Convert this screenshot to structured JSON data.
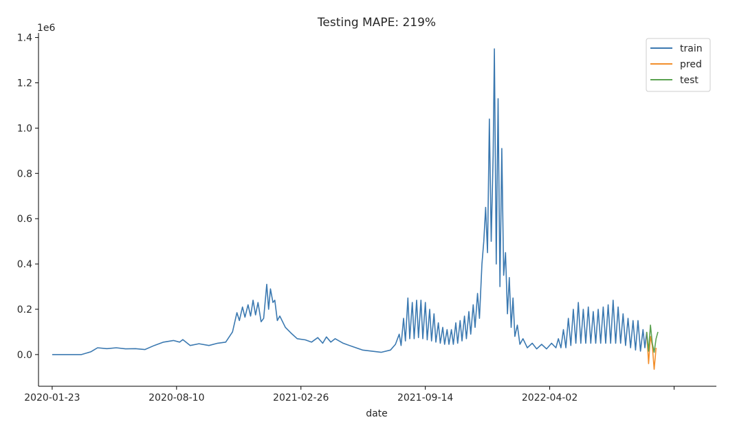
{
  "chart_data": {
    "type": "line",
    "title": "Testing MAPE: 219%",
    "xlabel": "date",
    "ylabel": "",
    "y_offset_label": "1e6",
    "x_ticks": [
      "2020-01-23",
      "2020-08-10",
      "2021-02-26",
      "2021-09-14",
      "2022-04-02",
      ""
    ],
    "y_ticks": [
      "0.0",
      "0.2",
      "0.4",
      "0.6",
      "0.8",
      "1.0",
      "1.2",
      "1.4"
    ],
    "xlim": [
      "2020-01-01",
      "2022-12-26"
    ],
    "ylim": [
      -140000,
      1420000
    ],
    "grid": false,
    "legend_position": "top-right",
    "series": [
      {
        "name": "train",
        "color": "#3a78b0",
        "points": [
          [
            "2020-01-23",
            0
          ],
          [
            "2020-02-15",
            0
          ],
          [
            "2020-03-10",
            0
          ],
          [
            "2020-03-25",
            12000
          ],
          [
            "2020-04-05",
            30000
          ],
          [
            "2020-04-20",
            26000
          ],
          [
            "2020-05-05",
            30000
          ],
          [
            "2020-05-20",
            25000
          ],
          [
            "2020-06-05",
            26000
          ],
          [
            "2020-06-20",
            22000
          ],
          [
            "2020-07-05",
            40000
          ],
          [
            "2020-07-20",
            55000
          ],
          [
            "2020-08-05",
            62000
          ],
          [
            "2020-08-15",
            55000
          ],
          [
            "2020-08-20",
            66000
          ],
          [
            "2020-09-01",
            40000
          ],
          [
            "2020-09-15",
            48000
          ],
          [
            "2020-10-01",
            40000
          ],
          [
            "2020-10-15",
            50000
          ],
          [
            "2020-10-28",
            55000
          ],
          [
            "2020-11-08",
            100000
          ],
          [
            "2020-11-15",
            185000
          ],
          [
            "2020-11-19",
            150000
          ],
          [
            "2020-11-24",
            210000
          ],
          [
            "2020-11-28",
            165000
          ],
          [
            "2020-12-03",
            220000
          ],
          [
            "2020-12-07",
            170000
          ],
          [
            "2020-12-11",
            240000
          ],
          [
            "2020-12-15",
            175000
          ],
          [
            "2020-12-19",
            230000
          ],
          [
            "2020-12-24",
            145000
          ],
          [
            "2020-12-28",
            160000
          ],
          [
            "2021-01-02",
            310000
          ],
          [
            "2021-01-05",
            200000
          ],
          [
            "2021-01-08",
            290000
          ],
          [
            "2021-01-12",
            230000
          ],
          [
            "2021-01-15",
            240000
          ],
          [
            "2021-01-19",
            150000
          ],
          [
            "2021-01-23",
            170000
          ],
          [
            "2021-02-01",
            120000
          ],
          [
            "2021-02-10",
            95000
          ],
          [
            "2021-02-20",
            70000
          ],
          [
            "2021-03-05",
            65000
          ],
          [
            "2021-03-15",
            55000
          ],
          [
            "2021-03-25",
            75000
          ],
          [
            "2021-04-02",
            50000
          ],
          [
            "2021-04-08",
            78000
          ],
          [
            "2021-04-15",
            55000
          ],
          [
            "2021-04-22",
            70000
          ],
          [
            "2021-05-05",
            50000
          ],
          [
            "2021-05-20",
            35000
          ],
          [
            "2021-06-05",
            20000
          ],
          [
            "2021-06-20",
            15000
          ],
          [
            "2021-07-05",
            10000
          ],
          [
            "2021-07-20",
            20000
          ],
          [
            "2021-07-28",
            45000
          ],
          [
            "2021-08-03",
            90000
          ],
          [
            "2021-08-06",
            40000
          ],
          [
            "2021-08-10",
            160000
          ],
          [
            "2021-08-13",
            60000
          ],
          [
            "2021-08-17",
            250000
          ],
          [
            "2021-08-20",
            70000
          ],
          [
            "2021-08-24",
            230000
          ],
          [
            "2021-08-27",
            70000
          ],
          [
            "2021-08-31",
            240000
          ],
          [
            "2021-09-03",
            75000
          ],
          [
            "2021-09-07",
            240000
          ],
          [
            "2021-09-10",
            70000
          ],
          [
            "2021-09-14",
            230000
          ],
          [
            "2021-09-17",
            65000
          ],
          [
            "2021-09-21",
            200000
          ],
          [
            "2021-09-24",
            60000
          ],
          [
            "2021-09-28",
            180000
          ],
          [
            "2021-10-01",
            55000
          ],
          [
            "2021-10-05",
            140000
          ],
          [
            "2021-10-08",
            50000
          ],
          [
            "2021-10-12",
            120000
          ],
          [
            "2021-10-15",
            45000
          ],
          [
            "2021-10-19",
            110000
          ],
          [
            "2021-10-22",
            45000
          ],
          [
            "2021-10-26",
            110000
          ],
          [
            "2021-10-29",
            45000
          ],
          [
            "2021-11-02",
            140000
          ],
          [
            "2021-11-05",
            50000
          ],
          [
            "2021-11-09",
            150000
          ],
          [
            "2021-11-12",
            60000
          ],
          [
            "2021-11-16",
            170000
          ],
          [
            "2021-11-19",
            70000
          ],
          [
            "2021-11-23",
            190000
          ],
          [
            "2021-11-26",
            90000
          ],
          [
            "2021-11-30",
            220000
          ],
          [
            "2021-12-03",
            120000
          ],
          [
            "2021-12-07",
            270000
          ],
          [
            "2021-12-10",
            160000
          ],
          [
            "2021-12-14",
            400000
          ],
          [
            "2021-12-17",
            500000
          ],
          [
            "2021-12-20",
            650000
          ],
          [
            "2021-12-23",
            450000
          ],
          [
            "2021-12-26",
            1040000
          ],
          [
            "2021-12-29",
            500000
          ],
          [
            "2022-01-01",
            880000
          ],
          [
            "2022-01-03",
            1350000
          ],
          [
            "2022-01-06",
            400000
          ],
          [
            "2022-01-09",
            1130000
          ],
          [
            "2022-01-12",
            300000
          ],
          [
            "2022-01-15",
            910000
          ],
          [
            "2022-01-18",
            350000
          ],
          [
            "2022-01-21",
            450000
          ],
          [
            "2022-01-24",
            180000
          ],
          [
            "2022-01-27",
            340000
          ],
          [
            "2022-01-30",
            120000
          ],
          [
            "2022-02-02",
            250000
          ],
          [
            "2022-02-05",
            80000
          ],
          [
            "2022-02-09",
            130000
          ],
          [
            "2022-02-13",
            45000
          ],
          [
            "2022-02-18",
            70000
          ],
          [
            "2022-02-25",
            30000
          ],
          [
            "2022-03-05",
            50000
          ],
          [
            "2022-03-12",
            25000
          ],
          [
            "2022-03-20",
            45000
          ],
          [
            "2022-03-28",
            25000
          ],
          [
            "2022-04-05",
            50000
          ],
          [
            "2022-04-12",
            30000
          ],
          [
            "2022-04-16",
            70000
          ],
          [
            "2022-04-20",
            30000
          ],
          [
            "2022-04-24",
            110000
          ],
          [
            "2022-04-28",
            30000
          ],
          [
            "2022-05-02",
            160000
          ],
          [
            "2022-05-06",
            40000
          ],
          [
            "2022-05-10",
            200000
          ],
          [
            "2022-05-14",
            50000
          ],
          [
            "2022-05-18",
            230000
          ],
          [
            "2022-05-22",
            50000
          ],
          [
            "2022-05-26",
            200000
          ],
          [
            "2022-05-30",
            50000
          ],
          [
            "2022-06-03",
            210000
          ],
          [
            "2022-06-07",
            50000
          ],
          [
            "2022-06-11",
            190000
          ],
          [
            "2022-06-15",
            50000
          ],
          [
            "2022-06-19",
            200000
          ],
          [
            "2022-06-23",
            50000
          ],
          [
            "2022-06-27",
            210000
          ],
          [
            "2022-07-01",
            50000
          ],
          [
            "2022-07-05",
            220000
          ],
          [
            "2022-07-09",
            50000
          ],
          [
            "2022-07-13",
            240000
          ],
          [
            "2022-07-17",
            50000
          ],
          [
            "2022-07-21",
            210000
          ],
          [
            "2022-07-25",
            50000
          ],
          [
            "2022-07-29",
            180000
          ],
          [
            "2022-08-02",
            40000
          ],
          [
            "2022-08-06",
            160000
          ],
          [
            "2022-08-10",
            30000
          ],
          [
            "2022-08-14",
            150000
          ],
          [
            "2022-08-18",
            20000
          ],
          [
            "2022-08-22",
            150000
          ],
          [
            "2022-08-26",
            15000
          ],
          [
            "2022-08-30",
            110000
          ],
          [
            "2022-09-02",
            30000
          ],
          [
            "2022-09-05",
            100000
          ]
        ]
      },
      {
        "name": "pred",
        "color": "#f28e2b",
        "points": [
          [
            "2022-09-05",
            100000
          ],
          [
            "2022-09-08",
            -40000
          ],
          [
            "2022-09-11",
            80000
          ],
          [
            "2022-09-14",
            40000
          ],
          [
            "2022-09-17",
            -65000
          ],
          [
            "2022-09-20",
            30000
          ]
        ]
      },
      {
        "name": "test",
        "color": "#59a14f",
        "points": [
          [
            "2022-09-05",
            100000
          ],
          [
            "2022-09-08",
            15000
          ],
          [
            "2022-09-11",
            130000
          ],
          [
            "2022-09-14",
            50000
          ],
          [
            "2022-09-17",
            10000
          ],
          [
            "2022-09-20",
            70000
          ],
          [
            "2022-09-23",
            100000
          ]
        ]
      }
    ]
  }
}
